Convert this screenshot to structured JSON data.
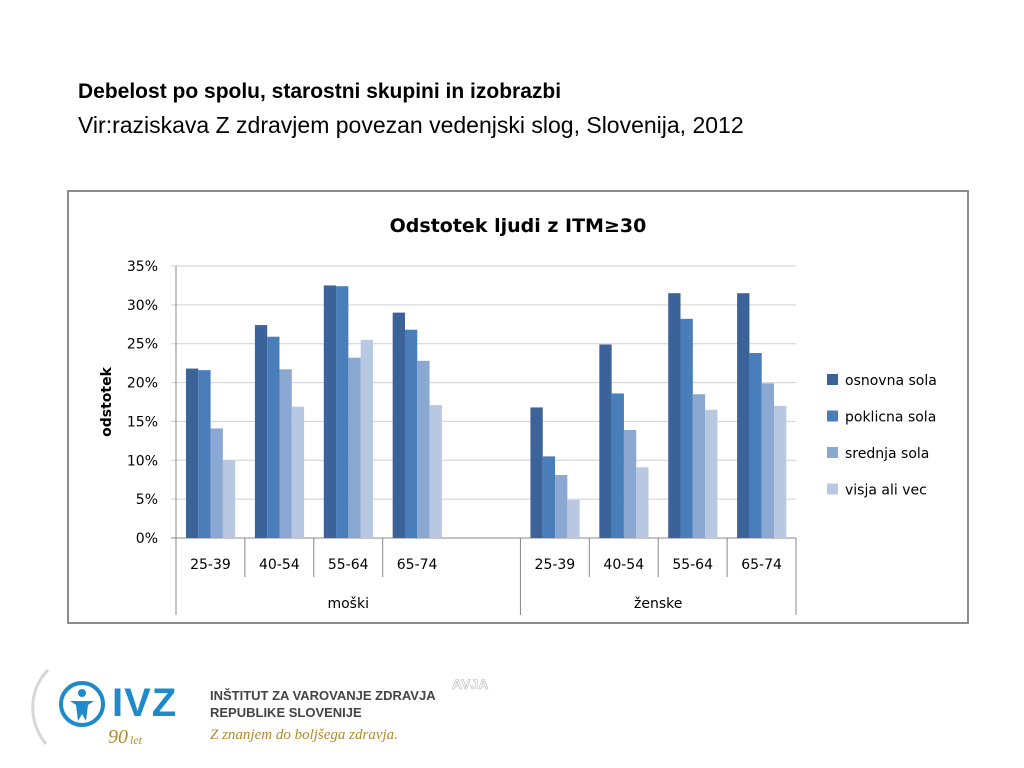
{
  "header": {
    "title": "Debelost po spolu, starostni skupini in izobrazbi",
    "subtitle": "Vir:raziskava Z zdravjem povezan vedenjski slog, Slovenija, 2012"
  },
  "chart_data": {
    "type": "bar",
    "title": "Odstotek ljudi z ITM≥30",
    "ylabel": "odstotek",
    "xlabel": "",
    "ylim": [
      0,
      35
    ],
    "yticks": [
      "0%",
      "5%",
      "10%",
      "15%",
      "20%",
      "25%",
      "30%",
      "35%"
    ],
    "grid": true,
    "legend_position": "right",
    "groups": [
      {
        "label": "moški",
        "categories": [
          "25-39",
          "40-54",
          "55-64",
          "65-74"
        ]
      },
      {
        "label": "ženske",
        "categories": [
          "25-39",
          "40-54",
          "55-64",
          "65-74"
        ]
      }
    ],
    "series": [
      {
        "name": "osnovna sola",
        "color": "#3b6299",
        "values": [
          21.8,
          27.4,
          32.5,
          29.0,
          16.8,
          24.9,
          31.5,
          31.5
        ]
      },
      {
        "name": "poklicna sola",
        "color": "#4a7ebb",
        "values": [
          21.6,
          25.9,
          32.4,
          26.8,
          10.5,
          18.6,
          28.2,
          23.8
        ]
      },
      {
        "name": "srednja sola",
        "color": "#8aa8d2",
        "values": [
          14.1,
          21.7,
          23.2,
          22.8,
          8.1,
          13.9,
          18.5,
          19.9
        ]
      },
      {
        "name": "visja ali vec",
        "color": "#b8c8e2",
        "values": [
          10.0,
          16.9,
          25.5,
          17.1,
          4.9,
          9.1,
          16.5,
          17.0
        ]
      }
    ]
  },
  "footer": {
    "logo_name": "IVZ",
    "institute_line1": "INŠTITUT ZA VAROVANJE ZDRAVJA",
    "institute_line2": "REPUBLIKE SLOVENIJE",
    "motto": "Z znanjem do boljšega zdravja.",
    "anniversary_number": "90",
    "anniversary_word": "let",
    "ghost_text": "AVJA",
    "brand_color": "#1f8ac9"
  }
}
